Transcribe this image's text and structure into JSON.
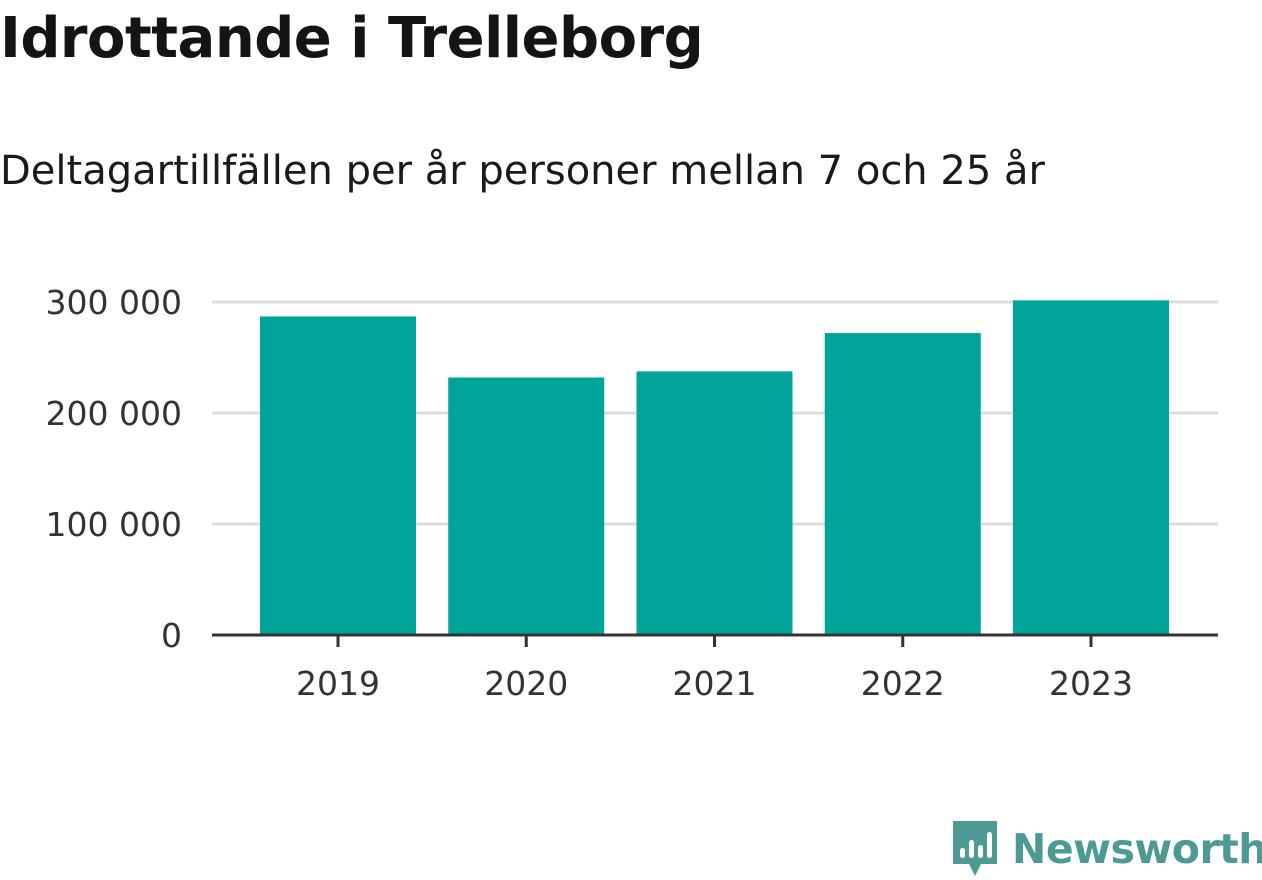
{
  "header": {
    "title": "Idrottande i Trelleborg",
    "subtitle": "Deltagartillfällen per år personer mellan 7 och 25 år"
  },
  "colors": {
    "bar": "#00a499",
    "grid": "#dcdcdc",
    "axis": "#333333",
    "brand": "#4d9a95"
  },
  "chart_data": {
    "type": "bar",
    "categories": [
      "2019",
      "2020",
      "2021",
      "2022",
      "2023"
    ],
    "values": [
      287000,
      232000,
      237500,
      272000,
      301500
    ],
    "ylim": [
      0,
      300000
    ],
    "yticks": [
      0,
      100000,
      200000,
      300000
    ],
    "ytick_labels": [
      "0",
      "100 000",
      "200 000",
      "300 000"
    ],
    "grid": true
  },
  "branding": {
    "logo_text": "Newsworthy",
    "logo_icon": "bar-chart-speech-bubble-icon"
  }
}
